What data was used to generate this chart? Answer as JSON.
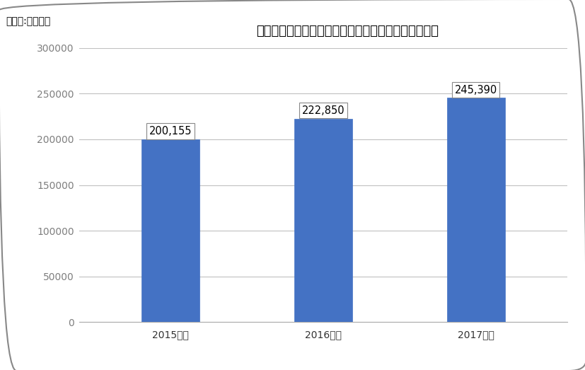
{
  "title": "サイバーセキュリティシステム開発サービス市場規模",
  "ylabel_note": "（単位:百万円）",
  "categories": [
    "2015年度",
    "2016年度",
    "2017年度"
  ],
  "values": [
    200155,
    222850,
    245390
  ],
  "labels": [
    "200,155",
    "222,850",
    "245,390"
  ],
  "bar_color": "#4472C4",
  "bar_edge_color": "#4472C4",
  "ylim": [
    0,
    300000
  ],
  "yticks": [
    0,
    50000,
    100000,
    150000,
    200000,
    250000,
    300000
  ],
  "ytick_color": "#7F7F7F",
  "grid_color": "#C0C0C0",
  "background_color": "#FFFFFF",
  "figure_edge_color": "#888888",
  "title_fontsize": 13,
  "label_fontsize": 10.5,
  "tick_fontsize": 10,
  "note_fontsize": 10,
  "bar_width": 0.38
}
